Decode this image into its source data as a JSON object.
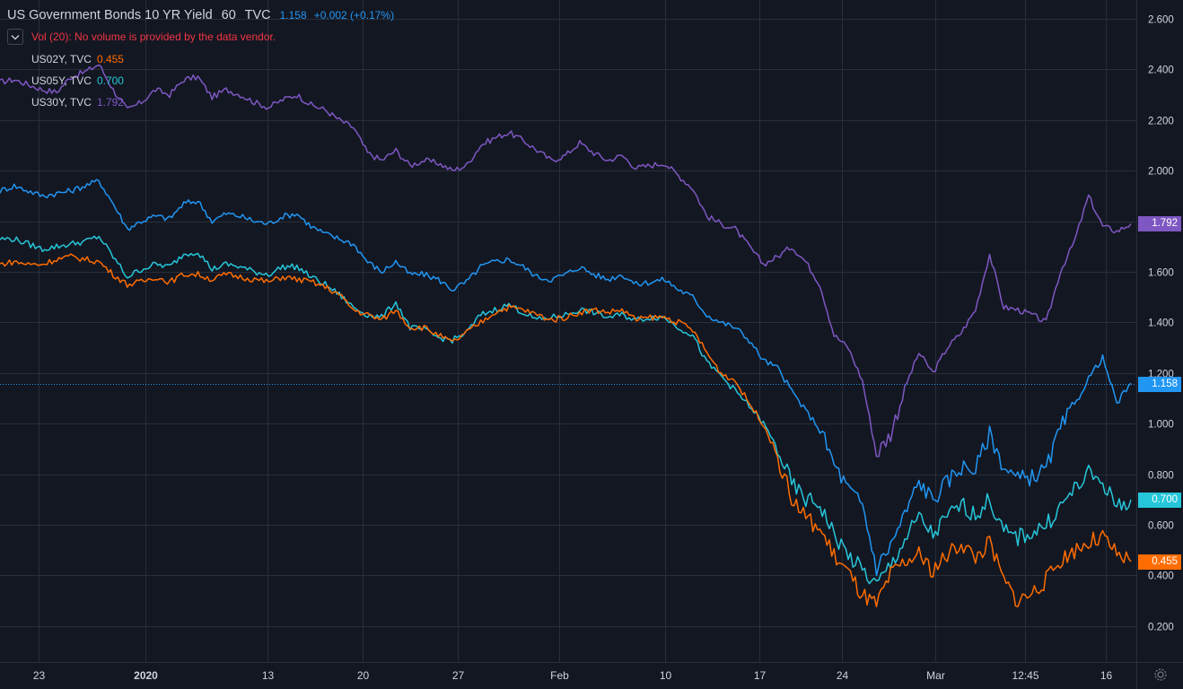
{
  "header": {
    "symbol": "US Government Bonds 10 YR Yield",
    "interval": "60",
    "exchange": "TVC",
    "last": "1.158",
    "change": "+0.002 (+0.17%)"
  },
  "volume_notice": "Vol (20): No volume is provided by the data vendor.",
  "comparisons": [
    {
      "name": "US02Y, TVC",
      "value": "0.455",
      "color": "#ff6d00"
    },
    {
      "name": "US05Y, TVC",
      "value": "0.700",
      "color": "#26c6da"
    },
    {
      "name": "US30Y, TVC",
      "value": "1.792",
      "color": "#7e57c2"
    }
  ],
  "price_labels": [
    {
      "value": "1.792",
      "color": "#7e57c2"
    },
    {
      "value": "1.158",
      "color": "#2196f3"
    },
    {
      "value": "0.700",
      "color": "#26c6da"
    },
    {
      "value": "0.455",
      "color": "#ff6d00"
    }
  ],
  "icons": {
    "collapse": "chevron-down-icon",
    "settings": "gear-icon"
  },
  "chart_data": {
    "type": "line",
    "y_ticks": [
      "2.600",
      "2.400",
      "2.200",
      "2.000",
      "1.800",
      "1.600",
      "1.400",
      "1.200",
      "1.000",
      "0.800",
      "0.600",
      "0.400",
      "0.200"
    ],
    "x_ticks": [
      "23",
      "2020",
      "13",
      "20",
      "27",
      "Feb",
      "10",
      "17",
      "24",
      "Mar",
      "12:45",
      "16"
    ],
    "x_tick_positions": [
      0.034,
      0.128,
      0.235,
      0.319,
      0.403,
      0.492,
      0.585,
      0.668,
      0.741,
      0.823,
      0.902,
      0.973
    ],
    "ylim": [
      0.2,
      2.6
    ],
    "grid": true,
    "last_price_line": 1.158,
    "series": [
      {
        "name": "US30Y",
        "color": "#7e57c2",
        "values": [
          2.35,
          2.36,
          2.34,
          2.32,
          2.31,
          2.37,
          2.39,
          2.42,
          2.32,
          2.24,
          2.27,
          2.32,
          2.3,
          2.36,
          2.37,
          2.29,
          2.32,
          2.3,
          2.27,
          2.25,
          2.28,
          2.3,
          2.26,
          2.24,
          2.2,
          2.17,
          2.07,
          2.04,
          2.08,
          2.02,
          2.04,
          2.03,
          2.0,
          2.02,
          2.1,
          2.13,
          2.15,
          2.12,
          2.08,
          2.04,
          2.06,
          2.11,
          2.07,
          2.04,
          2.06,
          2.01,
          2.02,
          2.03,
          1.98,
          1.93,
          1.82,
          1.79,
          1.77,
          1.7,
          1.63,
          1.66,
          1.7,
          1.64,
          1.55,
          1.35,
          1.3,
          1.17,
          0.88,
          0.96,
          1.14,
          1.28,
          1.2,
          1.3,
          1.36,
          1.45,
          1.67,
          1.46,
          1.45,
          1.43,
          1.4,
          1.6,
          1.72,
          1.9,
          1.78,
          1.76,
          1.79
        ]
      },
      {
        "name": "US10Y",
        "color": "#2196f3",
        "values": [
          1.92,
          1.94,
          1.92,
          1.9,
          1.91,
          1.92,
          1.94,
          1.96,
          1.87,
          1.77,
          1.8,
          1.82,
          1.81,
          1.87,
          1.88,
          1.8,
          1.83,
          1.82,
          1.8,
          1.79,
          1.82,
          1.83,
          1.78,
          1.75,
          1.73,
          1.71,
          1.64,
          1.6,
          1.64,
          1.59,
          1.59,
          1.57,
          1.53,
          1.56,
          1.62,
          1.64,
          1.65,
          1.62,
          1.58,
          1.57,
          1.59,
          1.62,
          1.59,
          1.57,
          1.59,
          1.55,
          1.56,
          1.57,
          1.53,
          1.5,
          1.43,
          1.4,
          1.38,
          1.33,
          1.25,
          1.22,
          1.13,
          1.05,
          0.98,
          0.84,
          0.74,
          0.68,
          0.43,
          0.52,
          0.64,
          0.77,
          0.7,
          0.77,
          0.83,
          0.82,
          0.96,
          0.83,
          0.78,
          0.79,
          0.82,
          0.98,
          1.07,
          1.18,
          1.26,
          1.08,
          1.16
        ]
      },
      {
        "name": "US05Y",
        "color": "#26c6da",
        "values": [
          1.73,
          1.73,
          1.71,
          1.69,
          1.7,
          1.71,
          1.72,
          1.74,
          1.66,
          1.58,
          1.61,
          1.63,
          1.62,
          1.67,
          1.68,
          1.61,
          1.63,
          1.62,
          1.6,
          1.59,
          1.62,
          1.62,
          1.58,
          1.55,
          1.51,
          1.46,
          1.43,
          1.42,
          1.48,
          1.38,
          1.37,
          1.34,
          1.33,
          1.36,
          1.43,
          1.45,
          1.47,
          1.44,
          1.41,
          1.42,
          1.43,
          1.45,
          1.44,
          1.42,
          1.43,
          1.41,
          1.42,
          1.42,
          1.38,
          1.35,
          1.24,
          1.19,
          1.13,
          1.07,
          1.0,
          0.9,
          0.76,
          0.7,
          0.68,
          0.56,
          0.48,
          0.42,
          0.36,
          0.44,
          0.54,
          0.63,
          0.56,
          0.63,
          0.68,
          0.64,
          0.7,
          0.57,
          0.55,
          0.57,
          0.6,
          0.67,
          0.74,
          0.8,
          0.77,
          0.67,
          0.7
        ]
      },
      {
        "name": "US02Y",
        "color": "#ff6d00",
        "values": [
          1.63,
          1.64,
          1.63,
          1.63,
          1.65,
          1.66,
          1.65,
          1.64,
          1.59,
          1.55,
          1.56,
          1.58,
          1.56,
          1.59,
          1.59,
          1.57,
          1.59,
          1.58,
          1.57,
          1.56,
          1.58,
          1.57,
          1.56,
          1.54,
          1.51,
          1.45,
          1.43,
          1.41,
          1.45,
          1.38,
          1.38,
          1.35,
          1.32,
          1.36,
          1.4,
          1.44,
          1.46,
          1.45,
          1.43,
          1.41,
          1.42,
          1.44,
          1.45,
          1.44,
          1.45,
          1.41,
          1.42,
          1.42,
          1.4,
          1.37,
          1.28,
          1.2,
          1.17,
          1.08,
          1.0,
          0.87,
          0.7,
          0.63,
          0.58,
          0.48,
          0.41,
          0.32,
          0.28,
          0.4,
          0.45,
          0.48,
          0.42,
          0.48,
          0.53,
          0.47,
          0.53,
          0.38,
          0.3,
          0.33,
          0.38,
          0.46,
          0.5,
          0.53,
          0.55,
          0.48,
          0.455
        ]
      }
    ]
  }
}
